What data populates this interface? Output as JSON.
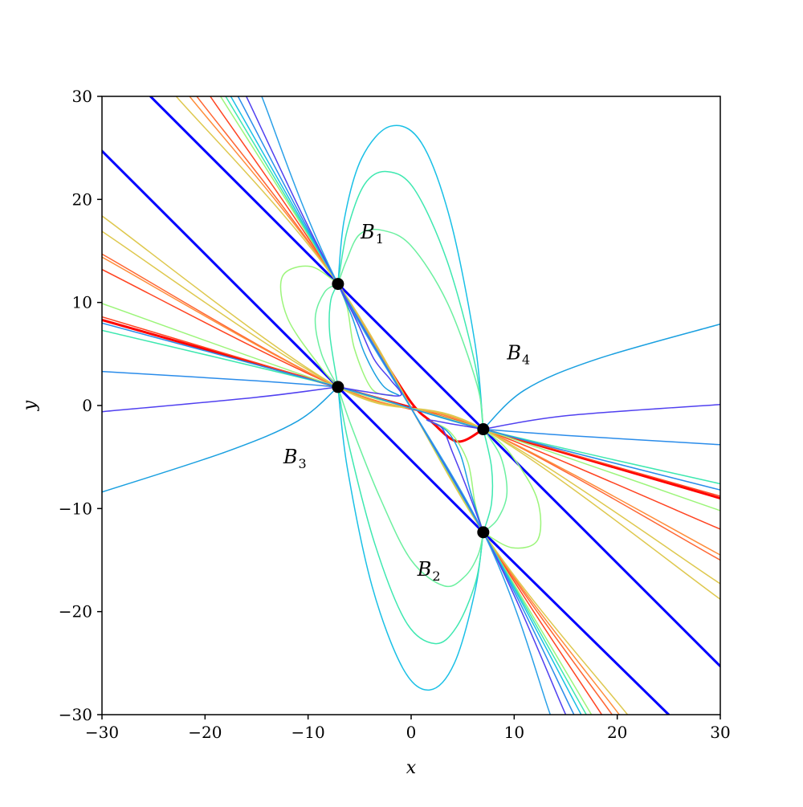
{
  "chart_data": {
    "type": "line",
    "title": "",
    "xlabel": "x",
    "ylabel": "y",
    "xlim": [
      -30,
      30
    ],
    "ylim": [
      -30,
      30
    ],
    "x_ticks": [
      -30,
      -20,
      -10,
      0,
      10,
      20,
      30
    ],
    "y_ticks": [
      -30,
      -20,
      -10,
      0,
      10,
      20,
      30
    ],
    "x_tick_labels": [
      "−30",
      "−20",
      "−10",
      "0",
      "10",
      "20",
      "30"
    ],
    "y_tick_labels": [
      "−30",
      "−20",
      "−10",
      "0",
      "10",
      "20",
      "30"
    ],
    "grid": false,
    "legend": "none",
    "points": [
      {
        "x": -7.1,
        "y": 11.8
      },
      {
        "x": -7.1,
        "y": 1.8
      },
      {
        "x": 7.0,
        "y": -2.3
      },
      {
        "x": 7.0,
        "y": -12.3
      }
    ],
    "point_color": "#000000",
    "annotations": [
      {
        "base": "B",
        "sub": "1",
        "x": -4.9,
        "y": 16.2
      },
      {
        "base": "B",
        "sub": "2",
        "x": 0.6,
        "y": -16.5
      },
      {
        "base": "B",
        "sub": "3",
        "x": -12.4,
        "y": -5.6
      },
      {
        "base": "B",
        "sub": "4",
        "x": 9.3,
        "y": 4.5
      }
    ],
    "series": [
      {
        "color": "#0000ff",
        "width": 3,
        "points": [
          [
            -30,
            24.7
          ],
          [
            -7.1,
            1.8
          ],
          [
            7.0,
            -12.3
          ],
          [
            25,
            -30
          ]
        ]
      },
      {
        "color": "#0000ff",
        "width": 3,
        "points": [
          [
            -25.3,
            30
          ],
          [
            -7.1,
            11.8
          ],
          [
            7.0,
            -2.3
          ],
          [
            30,
            -25.3
          ]
        ]
      },
      {
        "color": "#ff0000",
        "width": 3,
        "points": [
          [
            -30,
            8.3
          ],
          [
            -7.1,
            1.8
          ],
          [
            0,
            -0.2
          ],
          [
            7.0,
            -2.3
          ],
          [
            30,
            -9.0
          ]
        ]
      },
      {
        "color": "#ff0000",
        "width": 3,
        "points": [
          [
            -7.1,
            11.8
          ],
          [
            -3.5,
            5.8
          ],
          [
            0,
            0.3
          ],
          [
            2.0,
            -1.6
          ],
          [
            4.5,
            -3.5
          ],
          [
            7.0,
            -2.3
          ]
        ]
      },
      {
        "color": "#ff4422",
        "width": 1.5,
        "points": [
          [
            -30,
            13.2
          ],
          [
            -7.1,
            1.8
          ],
          [
            7.0,
            -2.3
          ],
          [
            30,
            -12.0
          ]
        ]
      },
      {
        "color": "#ff4422",
        "width": 1.5,
        "points": [
          [
            -30,
            8.6
          ],
          [
            -7.1,
            1.8
          ],
          [
            7.0,
            -2.3
          ],
          [
            30,
            -8.8
          ]
        ]
      },
      {
        "color": "#ff6633",
        "width": 1.5,
        "points": [
          [
            -30,
            14.7
          ],
          [
            -7.1,
            1.8
          ],
          [
            7.0,
            -2.3
          ],
          [
            30,
            -15.0
          ]
        ]
      },
      {
        "color": "#ff8c3a",
        "width": 1.5,
        "points": [
          [
            -30,
            14.4
          ],
          [
            -7.1,
            1.8
          ],
          [
            7.0,
            -2.3
          ],
          [
            30,
            -14.5
          ]
        ]
      },
      {
        "color": "#dec84e",
        "width": 1.5,
        "points": [
          [
            -30,
            16.9
          ],
          [
            -7.1,
            1.8
          ],
          [
            7.0,
            -2.3
          ],
          [
            30,
            -17.3
          ]
        ]
      },
      {
        "color": "#dec84e",
        "width": 1.5,
        "points": [
          [
            -30,
            18.4
          ],
          [
            -7.1,
            1.8
          ],
          [
            7.0,
            -2.3
          ],
          [
            30,
            -18.8
          ]
        ]
      },
      {
        "color": "#9cf57a",
        "width": 1.5,
        "points": [
          [
            -30,
            9.9
          ],
          [
            -7.1,
            1.8
          ],
          [
            7.0,
            -2.3
          ],
          [
            30,
            -10.2
          ]
        ]
      },
      {
        "color": "#3ee8b0",
        "width": 1.5,
        "points": [
          [
            -30,
            7.3
          ],
          [
            -7.1,
            1.8
          ],
          [
            7.0,
            -2.3
          ],
          [
            30,
            -7.6
          ]
        ]
      },
      {
        "color": "#2a8cea",
        "width": 1.5,
        "points": [
          [
            -30,
            8.0
          ],
          [
            -7.1,
            1.8
          ],
          [
            7.0,
            -2.3
          ],
          [
            30,
            -8.2
          ]
        ]
      },
      {
        "color": "#ff4422",
        "width": 1.5,
        "points": [
          [
            -19.5,
            30
          ],
          [
            -7.1,
            11.8
          ],
          [
            7.0,
            -12.3
          ],
          [
            18.5,
            -30
          ]
        ]
      },
      {
        "color": "#ff6633",
        "width": 1.5,
        "points": [
          [
            -20.8,
            30
          ],
          [
            -7.1,
            11.8
          ],
          [
            7.0,
            -12.3
          ],
          [
            19.5,
            -30
          ]
        ]
      },
      {
        "color": "#ff8c3a",
        "width": 1.5,
        "points": [
          [
            -21.5,
            30
          ],
          [
            -7.1,
            11.8
          ],
          [
            7.0,
            -12.3
          ],
          [
            20.2,
            -30
          ]
        ]
      },
      {
        "color": "#dec84e",
        "width": 1.5,
        "points": [
          [
            -22.8,
            30
          ],
          [
            -7.1,
            11.8
          ],
          [
            7.0,
            -12.3
          ],
          [
            21.0,
            -30
          ]
        ]
      },
      {
        "color": "#9cf57a",
        "width": 1.5,
        "points": [
          [
            -18.5,
            30
          ],
          [
            -7.1,
            11.8
          ],
          [
            7.0,
            -12.3
          ],
          [
            17.5,
            -30
          ]
        ]
      },
      {
        "color": "#3ee8b0",
        "width": 1.5,
        "points": [
          [
            -18.0,
            30
          ],
          [
            -7.1,
            11.8
          ],
          [
            7.0,
            -12.3
          ],
          [
            17.0,
            -30
          ]
        ]
      },
      {
        "color": "#1ac0e6",
        "width": 1.5,
        "points": [
          [
            -17.5,
            30
          ],
          [
            -7.1,
            11.8
          ],
          [
            7.0,
            -12.3
          ],
          [
            16.5,
            -30
          ]
        ]
      },
      {
        "color": "#2a8cea",
        "width": 1.5,
        "points": [
          [
            -16.8,
            30
          ],
          [
            -7.1,
            11.8
          ],
          [
            7.0,
            -12.3
          ],
          [
            15.8,
            -30
          ]
        ]
      },
      {
        "color": "#5040f0",
        "width": 1.5,
        "points": [
          [
            -16.0,
            30
          ],
          [
            -7.1,
            11.8
          ],
          [
            7.0,
            -12.3
          ],
          [
            15.0,
            -30
          ]
        ]
      },
      {
        "color": "#2aa0e8",
        "width": 1.5,
        "points": [
          [
            -14.5,
            30
          ],
          [
            -7.1,
            11.8
          ],
          [
            7.0,
            -12.3
          ],
          [
            13.5,
            -30
          ]
        ]
      },
      {
        "color": "#2a8cea",
        "width": 1.5,
        "points": [
          [
            -30,
            3.3
          ],
          [
            -15,
            2.4
          ],
          [
            -7.1,
            1.8
          ]
        ]
      },
      {
        "color": "#5040f0",
        "width": 1.5,
        "points": [
          [
            -30,
            -0.6
          ],
          [
            -15,
            0.8
          ],
          [
            -7.1,
            1.8
          ]
        ]
      },
      {
        "color": "#1aa0e0",
        "width": 1.5,
        "points": [
          [
            -30,
            -8.4
          ],
          [
            -18,
            -4.5
          ],
          [
            -11,
            -1.5
          ],
          [
            -7.1,
            1.8
          ]
        ]
      },
      {
        "color": "#2a8cea",
        "width": 1.5,
        "points": [
          [
            7.0,
            -2.3
          ],
          [
            15,
            -2.9
          ],
          [
            30,
            -3.8
          ]
        ]
      },
      {
        "color": "#5040f0",
        "width": 1.5,
        "points": [
          [
            7.0,
            -2.3
          ],
          [
            15,
            -1.0
          ],
          [
            30,
            0.1
          ]
        ]
      },
      {
        "color": "#1aa0e0",
        "width": 1.5,
        "points": [
          [
            7.0,
            -2.3
          ],
          [
            11,
            1.5
          ],
          [
            18,
            4.5
          ],
          [
            30,
            7.9
          ]
        ]
      },
      {
        "color": "#1ac0e6",
        "width": 1.5,
        "points": [
          [
            -7.1,
            11.8
          ],
          [
            -6.5,
            18
          ],
          [
            -4.8,
            24
          ],
          [
            -2.0,
            27.1
          ],
          [
            1.0,
            25.5
          ],
          [
            3.8,
            18
          ],
          [
            6.2,
            6
          ],
          [
            7.0,
            -2.3
          ]
        ]
      },
      {
        "color": "#3ee8b0",
        "width": 1.5,
        "points": [
          [
            -7.1,
            11.8
          ],
          [
            -6.2,
            17
          ],
          [
            -4.5,
            21.5
          ],
          [
            -2.3,
            22.7
          ],
          [
            0.3,
            21.0
          ],
          [
            3.5,
            14
          ],
          [
            6.2,
            4
          ],
          [
            7.0,
            -2.3
          ]
        ]
      },
      {
        "color": "#6cf0a0",
        "width": 1.5,
        "points": [
          [
            -7.1,
            11.8
          ],
          [
            -6.3,
            14
          ],
          [
            -5.0,
            16.6
          ],
          [
            -2.8,
            17.0
          ],
          [
            0,
            15.5
          ],
          [
            3.5,
            10
          ],
          [
            6.4,
            2
          ],
          [
            7.0,
            -2.3
          ]
        ]
      },
      {
        "color": "#1ac0e6",
        "width": 1.5,
        "points": [
          [
            -7.1,
            1.8
          ],
          [
            -6.2,
            -6
          ],
          [
            -3.8,
            -17.5
          ],
          [
            -0.8,
            -25.5
          ],
          [
            1.8,
            -27.6
          ],
          [
            4.2,
            -25
          ],
          [
            6.2,
            -18
          ],
          [
            7.0,
            -12.3
          ]
        ]
      },
      {
        "color": "#3ee8b0",
        "width": 1.5,
        "points": [
          [
            -7.1,
            1.8
          ],
          [
            -6.0,
            -4
          ],
          [
            -3.5,
            -13.5
          ],
          [
            -0.5,
            -21
          ],
          [
            2.3,
            -23.1
          ],
          [
            4.4,
            -21.5
          ],
          [
            6.3,
            -17
          ],
          [
            7.0,
            -12.3
          ]
        ]
      },
      {
        "color": "#6cf0a0",
        "width": 1.5,
        "points": [
          [
            -7.1,
            1.8
          ],
          [
            -5.8,
            -2
          ],
          [
            -3.0,
            -9
          ],
          [
            0,
            -15
          ],
          [
            3.2,
            -17.5
          ],
          [
            5.2,
            -16.6
          ],
          [
            6.5,
            -14.5
          ],
          [
            7.0,
            -12.3
          ]
        ]
      },
      {
        "color": "#9cf57a",
        "width": 1.5,
        "points": [
          [
            -7.1,
            11.8
          ],
          [
            -9.8,
            13.5
          ],
          [
            -12.5,
            12.5
          ],
          [
            -12.0,
            8.5
          ],
          [
            -9.0,
            4.0
          ],
          [
            -7.1,
            1.8
          ]
        ]
      },
      {
        "color": "#6cf0a0",
        "width": 1.5,
        "points": [
          [
            -7.1,
            11.8
          ],
          [
            -8.4,
            11.0
          ],
          [
            -9.3,
            8.5
          ],
          [
            -8.7,
            5.0
          ],
          [
            -7.1,
            1.8
          ]
        ]
      },
      {
        "color": "#3ee8b0",
        "width": 1.5,
        "points": [
          [
            -7.1,
            11.8
          ],
          [
            -7.8,
            10.2
          ],
          [
            -7.9,
            7.0
          ],
          [
            -7.1,
            1.8
          ]
        ]
      },
      {
        "color": "#9cf57a",
        "width": 1.5,
        "points": [
          [
            7.0,
            -2.3
          ],
          [
            9.5,
            -4.5
          ],
          [
            12.2,
            -9.0
          ],
          [
            12.3,
            -13.0
          ],
          [
            9.8,
            -13.8
          ],
          [
            7.0,
            -12.3
          ]
        ]
      },
      {
        "color": "#6cf0a0",
        "width": 1.5,
        "points": [
          [
            7.0,
            -2.3
          ],
          [
            8.7,
            -5.0
          ],
          [
            9.3,
            -8.5
          ],
          [
            8.4,
            -11.0
          ],
          [
            7.0,
            -12.3
          ]
        ]
      },
      {
        "color": "#3ee8b0",
        "width": 1.5,
        "points": [
          [
            7.0,
            -2.3
          ],
          [
            7.8,
            -6.0
          ],
          [
            7.8,
            -9.5
          ],
          [
            7.0,
            -12.3
          ]
        ]
      },
      {
        "color": "#9cf57a",
        "width": 1.5,
        "points": [
          [
            -7.1,
            11.8
          ],
          [
            -6.2,
            9.5
          ],
          [
            -5.5,
            5.5
          ],
          [
            -3.8,
            1.6
          ],
          [
            -1.8,
            1.0
          ]
        ]
      },
      {
        "color": "#1aa0e0",
        "width": 1.5,
        "points": [
          [
            -7.1,
            11.8
          ],
          [
            -5.7,
            8.5
          ],
          [
            -4.5,
            5.0
          ],
          [
            -2.8,
            2.0
          ],
          [
            -1.2,
            1.0
          ]
        ]
      },
      {
        "color": "#5040f0",
        "width": 1.5,
        "points": [
          [
            -7.1,
            11.8
          ],
          [
            -5.2,
            8.0
          ],
          [
            -3.6,
            4.5
          ],
          [
            -2.0,
            2.5
          ],
          [
            -1.0,
            1.0
          ],
          [
            -3.5,
            1.2
          ],
          [
            -7.1,
            1.8
          ]
        ]
      },
      {
        "color": "#9cf57a",
        "width": 1.5,
        "points": [
          [
            7.0,
            -12.3
          ],
          [
            6.2,
            -9.5
          ],
          [
            5.5,
            -5.5
          ],
          [
            3.8,
            -2.6
          ],
          [
            1.8,
            -1.5
          ]
        ]
      },
      {
        "color": "#1aa0e0",
        "width": 1.5,
        "points": [
          [
            7.0,
            -12.3
          ],
          [
            5.8,
            -8.5
          ],
          [
            4.8,
            -4.8
          ],
          [
            3.5,
            -2.5
          ],
          [
            1.5,
            -1.4
          ]
        ]
      },
      {
        "color": "#5040f0",
        "width": 1.5,
        "points": [
          [
            7.0,
            -12.3
          ],
          [
            5.4,
            -8.0
          ],
          [
            4.0,
            -4.5
          ],
          [
            3.0,
            -2.2
          ],
          [
            1.6,
            -1.4
          ],
          [
            4.0,
            -1.8
          ],
          [
            7.0,
            -2.3
          ]
        ]
      }
    ]
  }
}
